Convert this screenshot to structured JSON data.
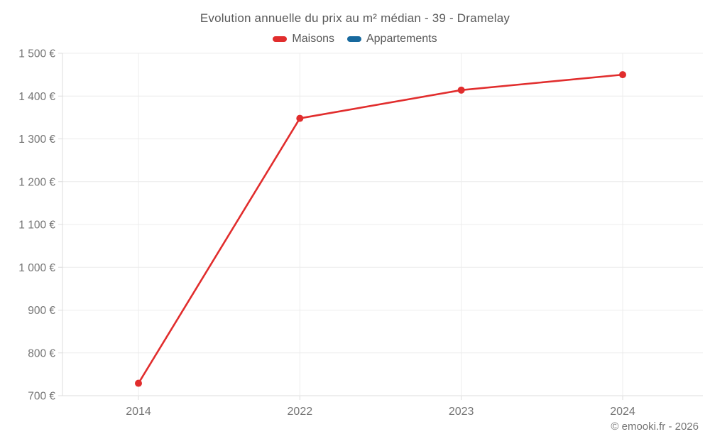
{
  "header": {
    "title": "Evolution annuelle du prix au m² médian - 39 - Dramelay"
  },
  "legend": [
    {
      "label": "Maisons",
      "color": "#e12d2d"
    },
    {
      "label": "Appartements",
      "color": "#17699e"
    }
  ],
  "footer": {
    "credit": "© emooki.fr - 2026"
  },
  "chart_data": {
    "type": "line",
    "title": "Evolution annuelle du prix au m² médian - 39 - Dramelay",
    "categories": [
      "2014",
      "2022",
      "2023",
      "2024"
    ],
    "series": [
      {
        "name": "Maisons",
        "color": "#e12d2d",
        "values": [
          729,
          1348,
          1414,
          1450
        ]
      },
      {
        "name": "Appartements",
        "color": "#17699e",
        "values": []
      }
    ],
    "xlabel": "",
    "ylabel": "",
    "ylim": [
      700,
      1500
    ],
    "y_ticks": [
      700,
      800,
      900,
      1000,
      1100,
      1200,
      1300,
      1400,
      1500
    ],
    "y_tick_labels": [
      "700 €",
      "800 €",
      "900 €",
      "1 000 €",
      "1 100 €",
      "1 200 €",
      "1 300 €",
      "1 400 €",
      "1 500 €"
    ],
    "grid": true,
    "legend_position": "top",
    "currency": "€"
  }
}
